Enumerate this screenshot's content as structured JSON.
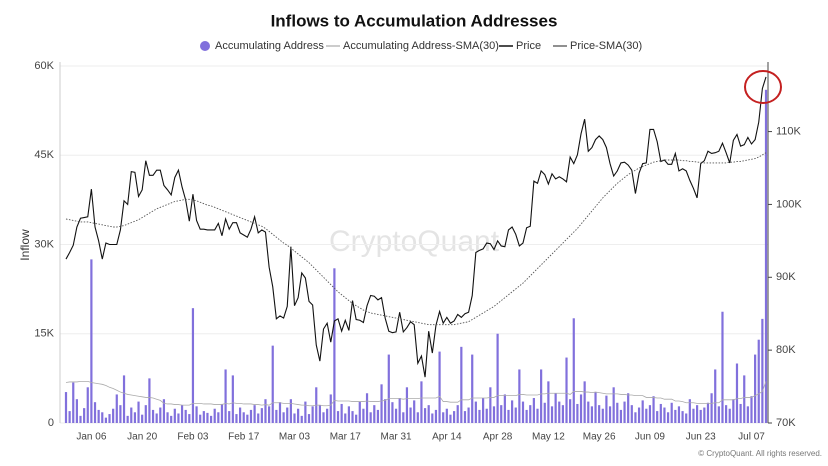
{
  "chart_data": {
    "type": "bar",
    "title": "Inflows to Accumulation Addresses",
    "ylabel": "Inflow",
    "watermark": "CryptoQuant",
    "footer": "© CryptoQuant. All rights reserved.",
    "ylim": [
      0,
      60000
    ],
    "yticks": [
      0,
      {
        "value": 15000,
        "label": "15K"
      },
      {
        "value": 30000,
        "label": "30K"
      },
      {
        "value": 45000,
        "label": "45K"
      },
      {
        "value": 60000,
        "label": "60K"
      }
    ],
    "y2lim": [
      70000,
      119000
    ],
    "y2ticks": [
      {
        "value": 70000,
        "label": "70K"
      },
      {
        "value": 80000,
        "label": "80K"
      },
      {
        "value": 90000,
        "label": "90K"
      },
      {
        "value": 100000,
        "label": "100K"
      },
      {
        "value": 110000,
        "label": "110K"
      }
    ],
    "categories": [
      null,
      null,
      null,
      null,
      null,
      null,
      null,
      "Jan 06",
      null,
      null,
      null,
      null,
      null,
      null,
      null,
      null,
      null,
      null,
      null,
      null,
      null,
      "Jan 20",
      null,
      null,
      null,
      null,
      null,
      null,
      null,
      null,
      null,
      null,
      null,
      null,
      null,
      "Feb 03",
      null,
      null,
      null,
      null,
      null,
      null,
      null,
      null,
      null,
      null,
      null,
      null,
      null,
      "Feb 17",
      null,
      null,
      null,
      null,
      null,
      null,
      null,
      null,
      null,
      null,
      null,
      null,
      null,
      "Mar 03",
      null,
      null,
      null,
      null,
      null,
      null,
      null,
      null,
      null,
      null,
      null,
      null,
      null,
      "Mar 17",
      null,
      null,
      null,
      null,
      null,
      null,
      null,
      null,
      null,
      null,
      null,
      null,
      null,
      "Mar 31",
      null,
      null,
      null,
      null,
      null,
      null,
      null,
      null,
      null,
      null,
      null,
      null,
      null,
      "Apr 14",
      null,
      null,
      null,
      null,
      null,
      null,
      null,
      null,
      null,
      null,
      null,
      null,
      null,
      "Apr 28",
      null,
      null,
      null,
      null,
      null,
      null,
      null,
      null,
      null,
      null,
      null,
      null,
      null,
      "May 12",
      null,
      null,
      null,
      null,
      null,
      null,
      null,
      null,
      null,
      null,
      null,
      null,
      null,
      "May 26",
      null,
      null,
      null,
      null,
      null,
      null,
      null,
      null,
      null,
      null,
      null,
      null,
      null,
      "Jun 09",
      null,
      null,
      null,
      null,
      null,
      null,
      null,
      null,
      null,
      null,
      null,
      null,
      null,
      "Jun 23",
      null,
      null,
      null,
      null,
      null,
      null,
      null,
      null,
      null,
      null,
      null,
      null,
      null,
      "Jul 07",
      null,
      null,
      null,
      null
    ],
    "series": [
      {
        "name": "Accumulating Address",
        "type": "bar",
        "color": "#8170dc",
        "values": [
          5200,
          2000,
          6800,
          4000,
          1200,
          2500,
          6000,
          27500,
          3500,
          2200,
          1800,
          900,
          1500,
          2400,
          4800,
          3000,
          8000,
          1200,
          2600,
          1800,
          3600,
          1400,
          3000,
          7500,
          2200,
          1600,
          2600,
          4000,
          1800,
          1200,
          2400,
          1600,
          3000,
          2200,
          1500,
          19300,
          2800,
          1400,
          2000,
          1700,
          1200,
          2400,
          1800,
          3200,
          9000,
          2000,
          8000,
          1500,
          2600,
          1800,
          1400,
          2200,
          3000,
          1600,
          2500,
          4000,
          2800,
          13000,
          2200,
          3500,
          1800,
          2600,
          4000,
          1600,
          2400,
          1200,
          3600,
          1500,
          2800,
          6000,
          3000,
          1800,
          2400,
          4800,
          26000,
          2000,
          3200,
          1600,
          2800,
          2000,
          1400,
          3600,
          2400,
          5000,
          1800,
          3000,
          2200,
          6500,
          4000,
          11500,
          3500,
          2400,
          4200,
          1800,
          6000,
          2600,
          3800,
          1800,
          7000,
          2500,
          3000,
          1600,
          2200,
          12000,
          1800,
          2400,
          1400,
          2000,
          3000,
          12800,
          2000,
          2600,
          11500,
          3600,
          2200,
          4200,
          2400,
          6000,
          2800,
          15000,
          3000,
          4800,
          2200,
          3800,
          2600,
          9000,
          3600,
          2200,
          3000,
          4200,
          2400,
          9000,
          3400,
          7000,
          2800,
          5000,
          3600,
          3000,
          11000,
          4000,
          17600,
          3200,
          4800,
          7000,
          3600,
          2800,
          5200,
          3000,
          2400,
          4600,
          2800,
          6000,
          3400,
          2200,
          3600,
          5000,
          3000,
          1800,
          2600,
          3800,
          2400,
          3000,
          4500,
          2000,
          3200,
          2600,
          1800,
          3400,
          2200,
          2800,
          2000,
          1600,
          4000,
          2400,
          3000,
          2200,
          2600,
          3400,
          5000,
          9000,
          2800,
          18700,
          3000,
          2400,
          4000,
          10000,
          3200,
          8000,
          2800,
          4500,
          11500,
          14000,
          17500,
          56000
        ]
      },
      {
        "name": "Accumulating Address-SMA(30)",
        "type": "line",
        "color": "#aaaaaa",
        "width": 0.8,
        "dash": "",
        "values": [
          6800,
          6900,
          6900,
          6900,
          7000,
          7000,
          7000,
          6800,
          6700,
          6600,
          6500,
          6300,
          6000,
          5800,
          5500,
          5200,
          5000,
          4800,
          4700,
          4600,
          4500,
          4400,
          4300,
          4300,
          4200,
          4000,
          3800,
          3300,
          3200,
          3200,
          3100,
          3100,
          3000,
          3000,
          3000,
          3300,
          3300,
          3300,
          3200,
          3200,
          3200,
          3100,
          3100,
          3100,
          3300,
          3200,
          3400,
          3300,
          3300,
          3200,
          3200,
          3200,
          3100,
          3100,
          3000,
          3100,
          3000,
          3400,
          3400,
          3400,
          3300,
          3300,
          3300,
          3200,
          3100,
          3000,
          3000,
          2900,
          2900,
          3000,
          3000,
          2900,
          2900,
          3000,
          3800,
          3700,
          3700,
          3700,
          3700,
          3600,
          3600,
          3600,
          3600,
          3700,
          3600,
          3600,
          3600,
          3700,
          3800,
          4100,
          4100,
          4100,
          4100,
          4000,
          4100,
          4100,
          4100,
          4100,
          4200,
          4200,
          4200,
          4200,
          4200,
          4500,
          3600,
          3600,
          3500,
          3500,
          3500,
          3900,
          3900,
          3900,
          4200,
          4200,
          4200,
          4200,
          4200,
          4300,
          4300,
          4600,
          4600,
          4600,
          4600,
          4600,
          4600,
          4800,
          4800,
          4700,
          4700,
          4700,
          4700,
          4900,
          4900,
          5000,
          5000,
          5000,
          5000,
          5000,
          5000,
          4800,
          5300,
          5300,
          5300,
          5200,
          5200,
          5100,
          5200,
          5100,
          5000,
          4900,
          4900,
          4900,
          4900,
          4800,
          4800,
          4700,
          4700,
          4600,
          4600,
          4600,
          4300,
          4300,
          4300,
          4200,
          4200,
          4000,
          4000,
          4000,
          3700,
          3700,
          3600,
          3400,
          3400,
          3400,
          3300,
          3300,
          3300,
          3300,
          3300,
          3400,
          3400,
          3900,
          3900,
          3900,
          3900,
          4100,
          4100,
          4300,
          4300,
          4300,
          4600,
          4900,
          5300,
          7000
        ]
      },
      {
        "name": "Price",
        "type": "line",
        "axis": "y2",
        "color": "#111111",
        "width": 1.1,
        "dash": "",
        "values": [
          92500,
          93400,
          94400,
          96900,
          98100,
          98200,
          98300,
          102100,
          96900,
          95000,
          92500,
          94700,
          94500,
          94500,
          94500,
          96500,
          100500,
          100000,
          104500,
          104400,
          101100,
          102000,
          106000,
          104000,
          104000,
          104700,
          104700,
          102600,
          102000,
          101300,
          103700,
          104700,
          102400,
          100600,
          97700,
          101400,
          97800,
          96600,
          96600,
          96500,
          96500,
          96500,
          97400,
          95700,
          98000,
          96600,
          97500,
          97500,
          96100,
          95800,
          95500,
          96600,
          98300,
          96100,
          96500,
          96200,
          91400,
          88700,
          84300,
          84700,
          84400,
          86000,
          94200,
          86100,
          87200,
          90600,
          89900,
          86700,
          86200,
          80700,
          78500,
          82900,
          83700,
          81100,
          84000,
          84300,
          82600,
          84100,
          82700,
          86800,
          84200,
          84100,
          83800,
          86100,
          87500,
          87400,
          86900,
          87200,
          84400,
          82600,
          82400,
          82500,
          85200,
          82500,
          83100,
          83900,
          83500,
          78200,
          79200,
          76300,
          82600,
          79600,
          83400,
          85300,
          83700,
          84500,
          83700,
          84000,
          84900,
          84500,
          85000,
          85200,
          87500,
          93400,
          93700,
          93900,
          94700,
          94600,
          93800,
          95000,
          94300,
          94200,
          96500,
          96900,
          95900,
          94300,
          94700,
          96800,
          97000,
          103200,
          102900,
          104600,
          104100,
          102800,
          104200,
          103500,
          103800,
          103500,
          103100,
          106500,
          105600,
          106800,
          109700,
          111700,
          107300,
          107800,
          108900,
          109400,
          108900,
          107800,
          105600,
          103900,
          104600,
          105700,
          105800,
          105400,
          104700,
          101500,
          104300,
          105600,
          105700,
          110300,
          110300,
          108600,
          105900,
          106100,
          105500,
          105500,
          107000,
          104600,
          104900,
          104600,
          103300,
          102200,
          100900,
          105600,
          106000,
          107300,
          107000,
          107100,
          107300,
          108400,
          107100,
          105700,
          108800,
          109600,
          108000,
          108200,
          109200,
          108300,
          108900,
          111300,
          115900,
          117500
        ]
      },
      {
        "name": "Price-SMA(30)",
        "type": "line",
        "axis": "y2",
        "color": "#555555",
        "width": 0.9,
        "dash": "1.5 1.5",
        "values": [
          98000,
          97900,
          97800,
          97700,
          97600,
          97600,
          97600,
          97500,
          97400,
          97300,
          97200,
          97100,
          97000,
          96900,
          96900,
          97000,
          97100,
          97300,
          97500,
          97700,
          97900,
          98200,
          98500,
          98800,
          99100,
          99400,
          99600,
          99800,
          100000,
          100200,
          100400,
          100500,
          100600,
          100700,
          100700,
          100600,
          100500,
          100300,
          100100,
          99900,
          99800,
          99600,
          99400,
          99200,
          99000,
          98800,
          98600,
          98400,
          98200,
          98000,
          97800,
          97600,
          97400,
          97200,
          97000,
          96700,
          96300,
          95900,
          95500,
          95100,
          94700,
          94400,
          94000,
          93600,
          93200,
          92800,
          92400,
          92000,
          91500,
          91000,
          90500,
          90000,
          89500,
          89000,
          88500,
          88000,
          87600,
          87200,
          86800,
          86400,
          86100,
          85800,
          85500,
          85300,
          85100,
          85000,
          84900,
          84800,
          84700,
          84600,
          84500,
          84400,
          84300,
          84200,
          84100,
          84000,
          83900,
          83800,
          83700,
          83600,
          83500,
          83500,
          83500,
          83500,
          83500,
          83500,
          83500,
          83500,
          83600,
          83700,
          83800,
          83900,
          84200,
          84500,
          84800,
          85100,
          85400,
          85700,
          86000,
          86400,
          86800,
          87200,
          87600,
          88000,
          88400,
          88800,
          89200,
          89700,
          90200,
          90700,
          91200,
          91700,
          92200,
          92700,
          93200,
          93700,
          94200,
          94700,
          95200,
          95700,
          96200,
          96700,
          97300,
          97900,
          98500,
          99100,
          99700,
          100300,
          100900,
          101400,
          101900,
          102400,
          102900,
          103300,
          103700,
          104100,
          104400,
          104700,
          105000,
          105200,
          105400,
          105600,
          105800,
          105900,
          106000,
          106100,
          106100,
          106100,
          106100,
          106100,
          106000,
          106000,
          105900,
          105900,
          105800,
          105800,
          105700,
          105700,
          105700,
          105700,
          105700,
          105700,
          105700,
          105800,
          105800,
          105900,
          105900,
          106000,
          106100,
          106200,
          106300,
          106500,
          106800,
          107100
        ]
      }
    ]
  }
}
